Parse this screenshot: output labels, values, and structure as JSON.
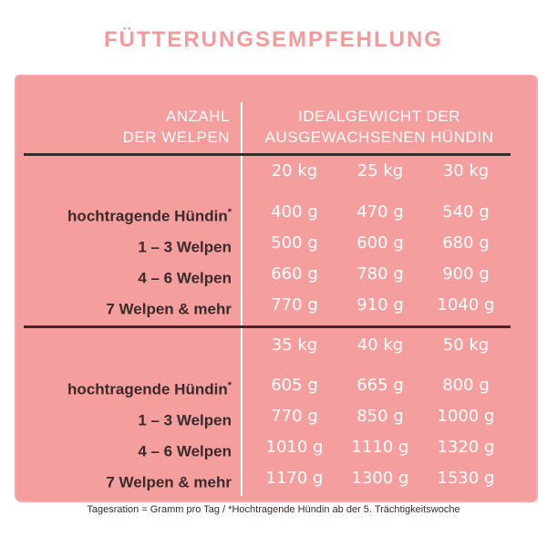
{
  "title": "FÜTTERUNGSEMPFEHLUNG",
  "header": {
    "left_line1": "ANZAHL",
    "left_line2": "DER WELPEN",
    "right_line1": "IDEALGEWICHT DER",
    "right_line2": "AUSGEWACHSENEN HÜNDIN"
  },
  "sections": [
    {
      "weights": [
        "20 kg",
        "25 kg",
        "30 kg"
      ],
      "rows": [
        {
          "label": "hochtragende Hündin",
          "mark": "*",
          "values": [
            "400 g",
            "470 g",
            "540 g"
          ]
        },
        {
          "label": "1 – 3 Welpen",
          "mark": "",
          "values": [
            "500 g",
            "600 g",
            "680 g"
          ]
        },
        {
          "label": "4 – 6 Welpen",
          "mark": "",
          "values": [
            "660 g",
            "780 g",
            "900 g"
          ]
        },
        {
          "label": "7 Welpen & mehr",
          "mark": "",
          "values": [
            "770 g",
            "910 g",
            "1040 g"
          ]
        }
      ]
    },
    {
      "weights": [
        "35 kg",
        "40 kg",
        "50 kg"
      ],
      "rows": [
        {
          "label": "hochtragende Hündin",
          "mark": "*",
          "values": [
            "605 g",
            "665 g",
            "800 g"
          ]
        },
        {
          "label": "1 – 3 Welpen",
          "mark": "",
          "values": [
            "770 g",
            "850 g",
            "1000 g"
          ]
        },
        {
          "label": "4 – 6 Welpen",
          "mark": "",
          "values": [
            "1010 g",
            "1110 g",
            "1320 g"
          ]
        },
        {
          "label": "7 Welpen & mehr",
          "mark": "",
          "values": [
            "1170 g",
            "1300 g",
            "1530 g"
          ]
        }
      ]
    }
  ],
  "footnote": "Tagesration = Gramm pro Tag / *Hochtragende Hündin ab der 5. Trächtigkeitswoche",
  "colors": {
    "panel": "#f49e9e",
    "title": "#f29a9c",
    "dark_text": "#3b2a2a",
    "light_text": "#ffffff"
  }
}
